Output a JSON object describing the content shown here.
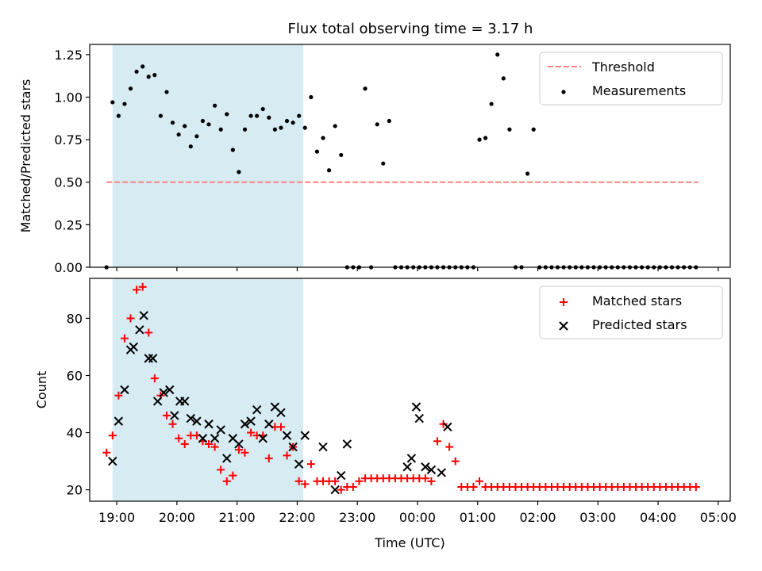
{
  "title": "Flux total observing time = 3.17 h",
  "chart_data": [
    {
      "type": "scatter",
      "ylabel": "Matched/Predicted stars",
      "xlim": [
        18.55,
        29.2
      ],
      "ylim": [
        0,
        1.31
      ],
      "yticks": [
        0.0,
        0.25,
        0.5,
        0.75,
        1.0,
        1.25
      ],
      "ytick_labels": [
        "0.00",
        "0.25",
        "0.50",
        "0.75",
        "1.00",
        "1.25"
      ],
      "highlight_span": {
        "x_start": 18.93,
        "x_end": 22.1,
        "color": "#add8e6"
      },
      "legend": {
        "position": "top-right",
        "entries": [
          "Threshold",
          "Measurements"
        ]
      },
      "threshold": {
        "name": "Threshold",
        "y": 0.5,
        "x_start": 18.83,
        "x_end": 28.67,
        "color": "#ff7f7f"
      },
      "series": [
        {
          "name": "Measurements",
          "color": "#000000",
          "marker": "dot",
          "x": [
            18.83,
            18.93,
            19.03,
            19.13,
            19.23,
            19.33,
            19.43,
            19.53,
            19.63,
            19.73,
            19.83,
            19.93,
            20.03,
            20.13,
            20.23,
            20.33,
            20.43,
            20.53,
            20.63,
            20.73,
            20.83,
            20.93,
            21.03,
            21.13,
            21.23,
            21.33,
            21.43,
            21.53,
            21.63,
            21.73,
            21.83,
            21.93,
            22.03,
            22.13,
            22.23,
            22.33,
            22.43,
            22.53,
            22.63,
            22.73,
            22.83,
            22.93,
            23.03,
            23.13,
            23.23,
            23.33,
            23.43,
            23.53,
            23.63,
            23.73,
            23.83,
            23.93,
            24.03,
            24.13,
            24.23,
            24.33,
            24.43,
            24.53,
            24.63,
            24.73,
            24.83,
            24.93,
            25.03,
            25.13,
            25.23,
            25.33,
            25.43,
            25.53,
            25.63,
            25.73,
            25.83,
            25.93,
            26.03,
            26.13,
            26.23,
            26.33,
            26.43,
            26.53,
            26.63,
            26.73,
            26.83,
            26.93,
            27.03,
            27.13,
            27.23,
            27.33,
            27.43,
            27.53,
            27.63,
            27.73,
            27.83,
            27.93,
            28.03,
            28.13,
            28.23,
            28.33,
            28.43,
            28.53,
            28.63
          ],
          "y": [
            0.0,
            0.97,
            0.89,
            0.96,
            1.05,
            1.15,
            1.18,
            1.12,
            1.13,
            0.89,
            1.03,
            0.85,
            0.78,
            0.83,
            0.71,
            0.77,
            0.86,
            0.84,
            0.95,
            0.81,
            0.9,
            0.69,
            0.56,
            0.81,
            0.89,
            0.89,
            0.93,
            0.88,
            0.81,
            0.82,
            0.86,
            0.85,
            0.89,
            0.82,
            1.0,
            0.68,
            0.76,
            0.57,
            0.83,
            0.66,
            0.0,
            0.0,
            0.0,
            1.05,
            0.0,
            0.84,
            0.61,
            0.86,
            0.0,
            0.0,
            0.0,
            0.0,
            0.0,
            0.0,
            0.0,
            0.0,
            0.0,
            0.0,
            0.0,
            0.0,
            0.0,
            0.0,
            0.75,
            0.76,
            0.96,
            1.25,
            1.11,
            0.81,
            0.0,
            0.0,
            0.55,
            0.81,
            0.0,
            0.0,
            0.0,
            0.0,
            0.0,
            0.0,
            0.0,
            0.0,
            0.0,
            0.0,
            0.0,
            0.0,
            0.0,
            0.0,
            0.0,
            0.0,
            0.0,
            0.0,
            0.0,
            0.0,
            0.0,
            0.0,
            0.0,
            0.0,
            0.0,
            0.0,
            0.0
          ]
        }
      ]
    },
    {
      "type": "scatter",
      "xlabel": "Time (UTC)",
      "ylabel": "Count",
      "xlim": [
        18.55,
        29.2
      ],
      "ylim": [
        16,
        94
      ],
      "yticks": [
        20,
        40,
        60,
        80
      ],
      "ytick_labels": [
        "20",
        "40",
        "60",
        "80"
      ],
      "xticks": [
        19,
        20,
        21,
        22,
        23,
        24,
        25,
        26,
        27,
        28,
        29
      ],
      "xtick_labels": [
        "19:00",
        "20:00",
        "21:00",
        "22:00",
        "23:00",
        "00:00",
        "01:00",
        "02:00",
        "03:00",
        "04:00",
        "05:00"
      ],
      "highlight_span": {
        "x_start": 18.93,
        "x_end": 22.1,
        "color": "#add8e6"
      },
      "legend": {
        "position": "top-right",
        "entries": [
          "Matched stars",
          "Predicted stars"
        ]
      },
      "series": [
        {
          "name": "Matched stars",
          "color": "#ff0000",
          "marker": "plus",
          "x": [
            18.83,
            18.93,
            19.03,
            19.13,
            19.23,
            19.33,
            19.43,
            19.53,
            19.63,
            19.73,
            19.83,
            19.93,
            20.03,
            20.13,
            20.23,
            20.33,
            20.43,
            20.53,
            20.63,
            20.73,
            20.83,
            20.93,
            21.03,
            21.13,
            21.23,
            21.33,
            21.43,
            21.53,
            21.63,
            21.73,
            21.83,
            21.93,
            22.03,
            22.13,
            22.23,
            22.33,
            22.43,
            22.53,
            22.63,
            22.73,
            22.83,
            22.93,
            23.03,
            23.13,
            23.23,
            23.33,
            23.43,
            23.53,
            23.63,
            23.73,
            23.83,
            23.93,
            24.03,
            24.13,
            24.23,
            24.33,
            24.43,
            24.53,
            24.63,
            24.73,
            24.83,
            24.93,
            25.03,
            25.13,
            25.23,
            25.33,
            25.43,
            25.53,
            25.63,
            25.73,
            25.83,
            25.93,
            26.03,
            26.13,
            26.23,
            26.33,
            26.43,
            26.53,
            26.63,
            26.73,
            26.83,
            26.93,
            27.03,
            27.13,
            27.23,
            27.33,
            27.43,
            27.53,
            27.63,
            27.73,
            27.83,
            27.93,
            28.03,
            28.13,
            28.23,
            28.33,
            28.43,
            28.53,
            28.63
          ],
          "y": [
            33,
            39,
            53,
            73,
            80,
            90,
            91,
            75,
            59,
            53,
            46,
            43,
            38,
            36,
            39,
            39,
            37,
            36,
            35,
            27,
            23,
            25,
            34,
            33,
            40,
            39,
            39,
            31,
            42,
            42,
            32,
            35,
            23,
            22,
            29,
            23,
            23,
            23,
            23,
            20,
            21,
            21,
            23,
            24,
            24,
            24,
            24,
            24,
            24,
            24,
            24,
            24,
            24,
            24,
            23,
            37,
            43,
            35,
            30,
            21,
            21,
            21,
            23,
            21,
            21,
            21,
            21,
            21,
            21,
            21,
            21,
            21,
            21,
            21,
            21,
            21,
            21,
            21,
            21,
            21,
            21,
            21,
            21,
            21,
            21,
            21,
            21,
            21,
            21,
            21,
            21,
            21,
            21,
            21,
            21,
            21,
            21,
            21,
            21
          ]
        },
        {
          "name": "Predicted stars",
          "color": "#000000",
          "marker": "x",
          "x": [
            18.93,
            19.03,
            19.13,
            19.23,
            19.28,
            19.38,
            19.45,
            19.53,
            19.6,
            19.68,
            19.78,
            19.88,
            19.96,
            20.05,
            20.13,
            20.23,
            20.33,
            20.43,
            20.53,
            20.63,
            20.73,
            20.83,
            20.93,
            21.03,
            21.13,
            21.23,
            21.33,
            21.43,
            21.53,
            21.63,
            21.73,
            21.83,
            21.93,
            22.03,
            22.13,
            22.43,
            22.63,
            22.73,
            22.83,
            23.83,
            23.9,
            23.98,
            24.03,
            24.13,
            24.23,
            24.4,
            24.5
          ],
          "y": [
            30,
            44,
            55,
            69,
            70,
            76,
            81,
            66,
            66,
            51,
            54,
            55,
            46,
            51,
            51,
            45,
            44,
            38,
            43,
            38,
            41,
            31,
            38,
            36,
            43,
            44,
            48,
            38,
            43,
            49,
            47,
            39,
            35,
            29,
            39,
            35,
            20,
            25,
            36,
            28,
            31,
            49,
            45,
            28,
            27,
            26,
            42
          ]
        }
      ]
    }
  ]
}
